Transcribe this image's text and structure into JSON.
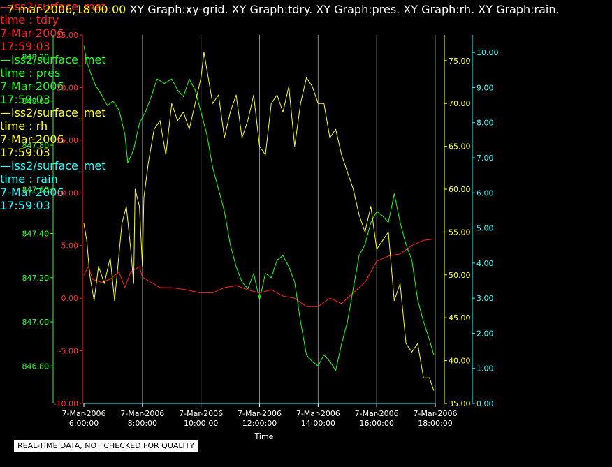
{
  "header": {
    "timestamp": "7-mar-2006,18:00:00",
    "graphs": "XY Graph:xy-grid.  XY Graph:tdry.  XY Graph:pres.  XY Graph:rh.  XY Graph:rain."
  },
  "legend": [
    {
      "title": "—iss2/surface_met",
      "field": "time : tdry",
      "date": "7-Mar-2006",
      "time": "17:59:03",
      "color": "#ff2020"
    },
    {
      "title": "—iss2/surface_met",
      "field": "time : pres",
      "date": "7-Mar-2006",
      "time": "17:59:03",
      "color": "#20ff20"
    },
    {
      "title": "—iss2/surface_met",
      "field": "time : rh",
      "date": "7-Mar-2006",
      "time": "17:59:03",
      "color": "#ffff20"
    },
    {
      "title": "—iss2/surface_met",
      "field": "time : rain",
      "date": "7-Mar-2006",
      "time": "17:59:03",
      "color": "#20ffff"
    }
  ],
  "footer": {
    "quality_note": "REAL-TIME DATA, NOT CHECKED FOR QUALITY"
  },
  "chart_data": {
    "type": "line",
    "xlabel": "Time",
    "x_ticks": [
      {
        "date": "7-Mar-2006",
        "time": "6:00:00",
        "hour": 6
      },
      {
        "date": "7-Mar-2006",
        "time": "8:00:00",
        "hour": 8
      },
      {
        "date": "7-Mar-2006",
        "time": "10:00:00",
        "hour": 10
      },
      {
        "date": "7-Mar-2006",
        "time": "12:00:00",
        "hour": 12
      },
      {
        "date": "7-Mar-2006",
        "time": "14:00:00",
        "hour": 14
      },
      {
        "date": "7-Mar-2006",
        "time": "16:00:00",
        "hour": 16
      },
      {
        "date": "7-Mar-2006",
        "time": "18:00:00",
        "hour": 18
      }
    ],
    "xlim": [
      6,
      18
    ],
    "grid": "vertical",
    "axes": [
      {
        "id": "tdry",
        "color": "#ff3030",
        "ylim": [
          -10,
          25
        ],
        "ticks": [
          "25.00",
          "20.00",
          "15.00",
          "10.00",
          "5.00",
          "0.00",
          "-5.00",
          "-10.00"
        ]
      },
      {
        "id": "pres",
        "color": "#30ff30",
        "ylim": [
          846.63,
          848.3
        ],
        "ticks": [
          "848.20",
          "848.00",
          "847.80",
          "847.60",
          "847.40",
          "847.20",
          "847.00",
          "846.80"
        ]
      },
      {
        "id": "rh",
        "color": "#ffff30",
        "ylim": [
          35,
          78
        ],
        "ticks": [
          "75.00",
          "70.00",
          "65.00",
          "60.00",
          "55.00",
          "50.00",
          "45.00",
          "40.00",
          "35.00"
        ]
      },
      {
        "id": "rain",
        "color": "#30ffff",
        "ylim": [
          0,
          10.5
        ],
        "ticks": [
          "10.00",
          "9.00",
          "8.00",
          "7.00",
          "6.00",
          "5.00",
          "4.00",
          "3.00",
          "2.00",
          "1.00",
          "0.00"
        ]
      }
    ],
    "series": [
      {
        "axis": "tdry",
        "color": "#ff2020",
        "x": [
          6.0,
          6.15,
          6.3,
          6.6,
          6.9,
          7.2,
          7.4,
          7.6,
          7.9,
          8.0,
          8.3,
          8.6,
          9.0,
          9.5,
          10.0,
          10.4,
          10.8,
          11.2,
          11.6,
          12.0,
          12.4,
          12.8,
          13.2,
          13.6,
          14.0,
          14.4,
          14.8,
          15.2,
          15.6,
          16.0,
          16.4,
          16.8,
          17.2,
          17.6,
          17.9
        ],
        "y": [
          2.2,
          3.0,
          1.8,
          1.5,
          1.8,
          2.5,
          1.0,
          2.5,
          3.0,
          2.0,
          1.5,
          1.0,
          1.0,
          0.8,
          0.5,
          0.5,
          1.0,
          1.2,
          0.8,
          0.5,
          0.8,
          0.2,
          0.0,
          -0.8,
          -0.8,
          0.0,
          -0.5,
          0.5,
          1.5,
          3.5,
          4.0,
          4.2,
          5.0,
          5.5,
          5.6
        ]
      },
      {
        "axis": "pres",
        "color": "#20ff20",
        "x": [
          6.0,
          6.1,
          6.25,
          6.4,
          6.6,
          6.8,
          7.0,
          7.2,
          7.4,
          7.5,
          7.7,
          7.9,
          8.1,
          8.3,
          8.5,
          8.75,
          9.0,
          9.2,
          9.4,
          9.6,
          9.8,
          10.0,
          10.2,
          10.4,
          10.6,
          10.8,
          11.0,
          11.2,
          11.4,
          11.6,
          11.8,
          12.0,
          12.2,
          12.4,
          12.6,
          12.8,
          13.0,
          13.2,
          13.4,
          13.6,
          13.8,
          14.0,
          14.2,
          14.4,
          14.6,
          14.8,
          15.0,
          15.2,
          15.4,
          15.6,
          15.8,
          16.0,
          16.2,
          16.4,
          16.6,
          16.8,
          17.0,
          17.2,
          17.4,
          17.6,
          17.8,
          17.95
        ],
        "y": [
          848.25,
          848.18,
          848.12,
          848.07,
          848.03,
          847.98,
          848.0,
          847.96,
          847.85,
          847.72,
          847.78,
          847.9,
          847.95,
          848.02,
          848.1,
          848.08,
          848.1,
          848.05,
          848.02,
          848.1,
          848.05,
          847.95,
          847.85,
          847.7,
          847.6,
          847.5,
          847.35,
          847.25,
          847.18,
          847.15,
          847.22,
          847.1,
          847.22,
          847.2,
          847.28,
          847.3,
          847.25,
          847.18,
          847.0,
          846.85,
          846.82,
          846.8,
          846.85,
          846.82,
          846.78,
          846.9,
          847.0,
          847.15,
          847.3,
          847.35,
          847.45,
          847.5,
          847.48,
          847.45,
          847.58,
          847.45,
          847.35,
          847.28,
          847.1,
          847.0,
          846.92,
          846.85
        ]
      },
      {
        "axis": "rh",
        "color": "#ffff20",
        "x": [
          6.0,
          6.1,
          6.2,
          6.35,
          6.5,
          6.7,
          6.9,
          7.05,
          7.3,
          7.45,
          7.6,
          7.7,
          7.75,
          7.9,
          8.0,
          8.05,
          8.2,
          8.4,
          8.6,
          8.8,
          9.0,
          9.2,
          9.4,
          9.6,
          9.8,
          10.0,
          10.1,
          10.2,
          10.3,
          10.4,
          10.6,
          10.8,
          11.0,
          11.2,
          11.4,
          11.6,
          11.8,
          12.0,
          12.2,
          12.4,
          12.6,
          12.8,
          13.0,
          13.2,
          13.4,
          13.6,
          13.8,
          14.0,
          14.2,
          14.4,
          14.6,
          14.8,
          15.0,
          15.2,
          15.4,
          15.6,
          15.8,
          16.0,
          16.2,
          16.4,
          16.6,
          16.8,
          17.0,
          17.2,
          17.4,
          17.6,
          17.8,
          17.95
        ],
        "y": [
          56,
          54,
          50,
          47,
          51,
          49,
          52,
          47,
          56,
          58,
          53,
          49,
          60,
          58,
          51,
          59,
          63,
          67,
          68,
          64,
          70,
          68,
          69,
          67,
          70,
          73,
          76,
          74,
          72,
          70,
          71,
          66,
          69,
          71,
          66,
          68,
          71,
          65,
          64,
          70,
          71,
          69,
          72,
          65,
          70,
          73,
          72,
          70,
          70,
          66,
          67,
          64,
          62,
          60,
          57,
          55,
          58,
          53,
          54,
          55,
          47,
          49,
          42,
          41,
          42,
          38,
          38,
          36.5
        ]
      },
      {
        "axis": "rain",
        "color": "#30ffff",
        "x": [
          6.0,
          18.0
        ],
        "y": [
          0.0,
          0.0
        ]
      }
    ]
  }
}
